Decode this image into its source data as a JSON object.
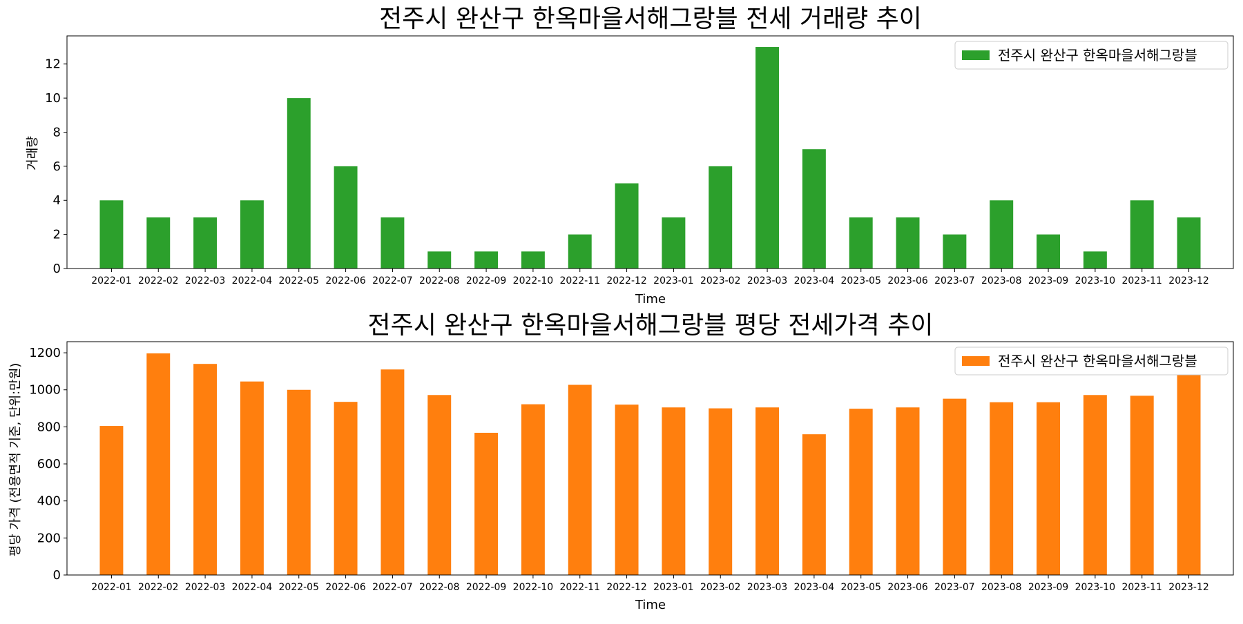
{
  "chart_data": [
    {
      "type": "bar",
      "title": "전주시 완산구 한옥마을서해그랑블 전세 거래량 추이",
      "xlabel": "Time",
      "ylabel": "거래량",
      "ylim": [
        0,
        13.65
      ],
      "yticks": [
        "0",
        "2",
        "4",
        "6",
        "8",
        "10",
        "12"
      ],
      "legend_position": "top-right",
      "categories": [
        "2022-01",
        "2022-02",
        "2022-03",
        "2022-04",
        "2022-05",
        "2022-06",
        "2022-07",
        "2022-08",
        "2022-09",
        "2022-10",
        "2022-11",
        "2022-12",
        "2023-01",
        "2023-02",
        "2023-03",
        "2023-04",
        "2023-05",
        "2023-06",
        "2023-07",
        "2023-08",
        "2023-09",
        "2023-10",
        "2023-11",
        "2023-12"
      ],
      "series": [
        {
          "name": "전주시 완산구 한옥마을서해그랑블",
          "color": "#2ca02c",
          "values": [
            4,
            3,
            3,
            4,
            10,
            6,
            3,
            1,
            1,
            1,
            2,
            5,
            3,
            6,
            13,
            7,
            3,
            3,
            2,
            4,
            2,
            1,
            4,
            3
          ]
        }
      ],
      "grid": false
    },
    {
      "type": "bar",
      "title": "전주시 완산구 한옥마을서해그랑블 평당 전세가격 추이",
      "xlabel": "Time",
      "ylabel": "평당 가격 (전용면적 기준, 단위:만원)",
      "ylim": [
        0,
        1260
      ],
      "yticks": [
        "0",
        "200",
        "400",
        "600",
        "800",
        "1000",
        "1200"
      ],
      "legend_position": "top-right",
      "categories": [
        "2022-01",
        "2022-02",
        "2022-03",
        "2022-04",
        "2022-05",
        "2022-06",
        "2022-07",
        "2022-08",
        "2022-09",
        "2022-10",
        "2022-11",
        "2022-12",
        "2023-01",
        "2023-02",
        "2023-03",
        "2023-04",
        "2023-05",
        "2023-06",
        "2023-07",
        "2023-08",
        "2023-09",
        "2023-10",
        "2023-11",
        "2023-12"
      ],
      "series": [
        {
          "name": "전주시 완산구 한옥마을서해그랑블",
          "color": "#ff7f0e",
          "values": [
            805,
            1197,
            1140,
            1045,
            1000,
            935,
            1110,
            972,
            768,
            922,
            1027,
            920,
            905,
            900,
            905,
            760,
            898,
            905,
            952,
            933,
            933,
            972,
            968,
            1080
          ]
        }
      ],
      "grid": false
    }
  ]
}
